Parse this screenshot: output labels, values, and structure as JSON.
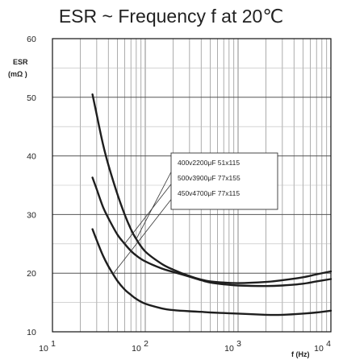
{
  "chart_data": {
    "type": "line",
    "title": "ESR ~ Frequency f at 20℃",
    "ylabel_line1": "ESR",
    "ylabel_line2": "(mΩ )",
    "xlabel": "f (Hz)",
    "x_scale": "log",
    "xlim": [
      10,
      10000
    ],
    "ylim": [
      10,
      60
    ],
    "grid": true,
    "x_ticks": [
      {
        "value": 10,
        "base": "10",
        "exp": "1"
      },
      {
        "value": 100,
        "base": "10",
        "exp": "2"
      },
      {
        "value": 1000,
        "base": "10",
        "exp": "3"
      },
      {
        "value": 10000,
        "base": "10",
        "exp": "4"
      }
    ],
    "y_ticks": [
      10,
      20,
      30,
      40,
      50,
      60
    ],
    "series": [
      {
        "name": "400v2200μF 51x115",
        "x": [
          27,
          30,
          35,
          40,
          50,
          60,
          70,
          80,
          100,
          150,
          200,
          300,
          400,
          500,
          700,
          1000,
          2000,
          3000,
          5000,
          7000,
          10000
        ],
        "y": [
          50.5,
          47.0,
          42.0,
          38.5,
          33.5,
          30.0,
          27.5,
          25.8,
          23.7,
          21.6,
          20.6,
          19.5,
          18.9,
          18.6,
          18.4,
          18.3,
          18.5,
          18.8,
          19.3,
          19.8,
          20.3
        ]
      },
      {
        "name": "500v3900μF 77x155",
        "x": [
          27,
          30,
          35,
          40,
          50,
          60,
          70,
          80,
          100,
          150,
          200,
          300,
          400,
          500,
          700,
          1000,
          2000,
          3000,
          5000,
          7000,
          10000
        ],
        "y": [
          36.3,
          34.3,
          31.3,
          29.4,
          26.6,
          25.0,
          23.8,
          23.0,
          22.0,
          20.8,
          20.2,
          19.4,
          18.8,
          18.4,
          18.1,
          17.9,
          17.8,
          17.9,
          18.2,
          18.6,
          19.0
        ]
      },
      {
        "name": "450v4700μF 77x115",
        "x": [
          27,
          30,
          35,
          40,
          50,
          60,
          70,
          80,
          100,
          150,
          200,
          300,
          400,
          500,
          700,
          1000,
          2000,
          3000,
          5000,
          7000,
          10000
        ],
        "y": [
          27.5,
          25.6,
          23.0,
          21.2,
          18.7,
          17.2,
          16.3,
          15.6,
          14.8,
          14.0,
          13.7,
          13.5,
          13.4,
          13.3,
          13.2,
          13.1,
          12.9,
          12.9,
          13.1,
          13.3,
          13.6
        ]
      }
    ],
    "legend": {
      "placement": "center-right",
      "entries": [
        "400v2200μF 51x115",
        "500v3900μF 77x155",
        "450v4700μF 77x115"
      ]
    },
    "colors": {
      "line": "#1e1e1e",
      "grid": "#8a8a8a",
      "frame": "#111111",
      "background": "#ffffff"
    }
  }
}
